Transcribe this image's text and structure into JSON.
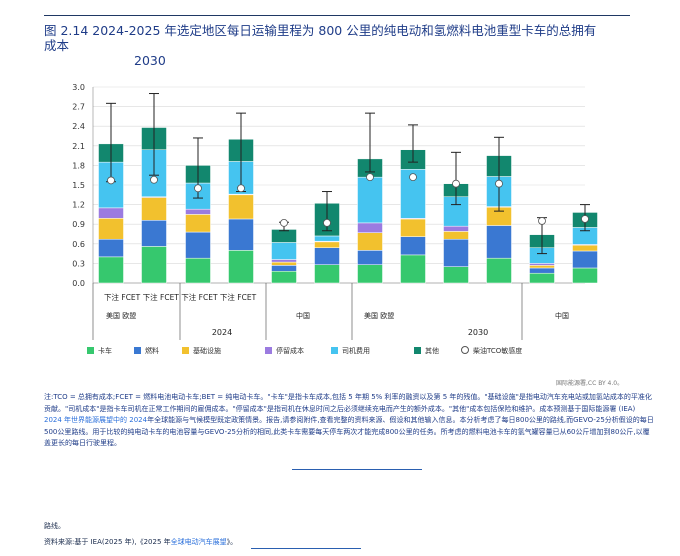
{
  "figure": {
    "title_line1": "图 2.14 2024-2025 年选定地区每日运输里程为 800 公里的纯电动和氢燃料电池重型卡车的总拥有",
    "title_line2": "成本",
    "title_line3": "2030"
  },
  "chart_data": {
    "type": "bar",
    "stacked": true,
    "ylim": [
      0,
      3.0
    ],
    "yticks": [
      "0.0",
      "0.3",
      "0.6",
      "0.9",
      "1.2",
      "1.5",
      "1.8",
      "2.1",
      "2.4",
      "2.7",
      "3.0"
    ],
    "bar_pair_label": "下注 FCET 下注 FCET 下注 FCET 下注 FCET",
    "region_labels": [
      "美国 欧盟",
      "中国",
      "美国 欧盟",
      "中国"
    ],
    "year_labels": [
      "2024",
      "2030"
    ],
    "series": [
      {
        "name": "卡车",
        "color": "#36c86e",
        "values": [
          0.4,
          0.56,
          0.38,
          0.5,
          0.18,
          0.28,
          0.28,
          0.43,
          0.25,
          0.38,
          0.15,
          0.23
        ]
      },
      {
        "name": "燃料",
        "color": "#3a78d2",
        "values": [
          0.27,
          0.4,
          0.4,
          0.48,
          0.09,
          0.26,
          0.22,
          0.28,
          0.42,
          0.5,
          0.08,
          0.26
        ]
      },
      {
        "name": "基础设施",
        "color": "#f2c12e",
        "values": [
          0.32,
          0.35,
          0.27,
          0.37,
          0.05,
          0.09,
          0.27,
          0.27,
          0.12,
          0.28,
          0.04,
          0.09
        ]
      },
      {
        "name": "停留成本",
        "color": "#9b7be0",
        "values": [
          0.16,
          0.01,
          0.08,
          0.01,
          0.04,
          0.01,
          0.15,
          0.01,
          0.08,
          0.01,
          0.03,
          0.01
        ]
      },
      {
        "name": "司机费用",
        "color": "#45c4f0",
        "values": [
          0.7,
          0.72,
          0.4,
          0.5,
          0.26,
          0.08,
          0.7,
          0.75,
          0.45,
          0.46,
          0.24,
          0.26
        ]
      },
      {
        "name": "其他",
        "color": "#12876e",
        "values": [
          0.28,
          0.34,
          0.27,
          0.34,
          0.2,
          0.5,
          0.28,
          0.3,
          0.2,
          0.32,
          0.2,
          0.23
        ]
      }
    ],
    "error_low": [
      1.55,
      1.65,
      1.3,
      1.4,
      0.8,
      0.8,
      1.7,
      1.85,
      1.2,
      1.1,
      0.45,
      0.8
    ],
    "error_high": [
      2.75,
      2.9,
      2.22,
      2.6,
      0.93,
      1.4,
      2.6,
      2.42,
      2.0,
      2.23,
      1.0,
      1.2
    ],
    "sensitivity": {
      "name": "柴油TCO敏感度",
      "values": [
        1.57,
        1.58,
        1.45,
        1.45,
        0.92,
        0.92,
        1.62,
        1.62,
        1.52,
        1.52,
        0.95,
        0.98
      ]
    }
  },
  "credit": "国际能源署,CC BY 4.0。",
  "notes": {
    "p1": "注:TCO = 总拥有成本;FCET = 燃料电池电动卡车;BET = 纯电动卡车。\"卡车\"是指卡车成本,包括 5 年期 5% 利率的融资以及第 5 年的残值。\"基础设施\"是指电动汽车充电站或加氢站成本的平准化贡献。\"司机成本\"是指卡车司机在正常工作期间的雇佣成本。\"停留成本\"是指司机在休息时间之后必须继续充电而产生的额外成本。\"其他\"成本包括保险和维护。成本预测基于国际能源署 (IEA) ",
    "p1_hl1": "2024 年世界能源展望中的 2024",
    "p1_mid": "年全球能源与气候模型既定政策情景",
    "p1_end": "。报告,请参阅附件,查看完整的资料来源、假设和其他输入信息。本分析考虑了每日800公里的路线,而GEVO-25分析假设的每日500公里路线。用于比较的纯电动卡车的电池容量与GEVO-25分析的相同,此类卡车需要每天停车两次才能完成800公里的任务。所考虑的燃料电池卡车的氢气罐容量已从60公斤增加到80公斤,以覆盖更长的每日行驶里程。",
    "road": "路线。",
    "source_pre": "资料来源:基于 IEA(2025 年),《2025 年",
    "source_hl": "全球电动汽车展望",
    "source_post": "》。"
  }
}
